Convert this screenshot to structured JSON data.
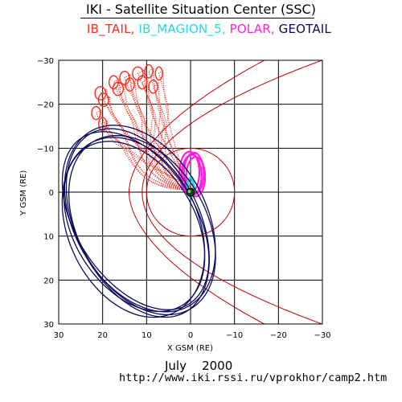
{
  "header": {
    "title": "IKI - Satellite Situation Center (SSC)"
  },
  "legend": [
    {
      "label": "IB_TAIL,",
      "color": "#ff2a1a"
    },
    {
      "label": "IB_MAGION_5,",
      "color": "#27d8e8"
    },
    {
      "label": "POLAR,",
      "color": "#ff1de0"
    },
    {
      "label": "GEOTAIL",
      "color": "#0a0a5a"
    }
  ],
  "footer": {
    "date_month": "July",
    "date_year": "2000",
    "url": "http://www.iki.rssi.ru/vprokhor/camp2.htm"
  },
  "chart_data": {
    "type": "scatter",
    "xlabel": "X GSM (RE)",
    "ylabel": "Y GSM (RE)",
    "xlim": [
      30,
      -30
    ],
    "ylim": [
      30,
      -30
    ],
    "xticks": [
      30,
      20,
      10,
      0,
      -10,
      -20,
      -30
    ],
    "yticks": [
      -30,
      -20,
      -10,
      0,
      10,
      20,
      30
    ],
    "xtick_labels": [
      "30",
      "20",
      "10",
      "0",
      "−10",
      "−20",
      "−30"
    ],
    "ytick_labels": [
      "−30",
      "−20",
      "−10",
      "0",
      "10",
      "20",
      "30"
    ],
    "grid": true,
    "earth": {
      "x": 0,
      "y": 0
    },
    "reference_curves": {
      "color": "#c00000",
      "magnetopause": {
        "standoff": 11,
        "flare_exponent": 0.5
      },
      "bow_shock": {
        "standoff": 14,
        "flare_exponent": 0.55,
        "x_min": -30
      },
      "circle_radius": 10
    },
    "series": [
      {
        "name": "IB_TAIL,",
        "color": "#ff2a1a",
        "orbits": [
          {
            "apogee": [
              20.5,
              -22.5
            ],
            "x_width": 2.5
          },
          {
            "apogee": [
              19.8,
              -21.0
            ],
            "x_width": 2.3
          },
          {
            "apogee": [
              17.5,
              -25.0
            ],
            "x_width": 2.1
          },
          {
            "apogee": [
              16.5,
              -23.5
            ],
            "x_width": 2.4
          },
          {
            "apogee": [
              15.0,
              -26.0
            ],
            "x_width": 2.2
          },
          {
            "apogee": [
              13.8,
              -24.5
            ],
            "x_width": 2.0
          },
          {
            "apogee": [
              12.0,
              -27.0
            ],
            "x_width": 2.4
          },
          {
            "apogee": [
              11.0,
              -25.0
            ],
            "x_width": 2.1
          },
          {
            "apogee": [
              9.5,
              -27.5
            ],
            "x_width": 1.8
          },
          {
            "apogee": [
              8.5,
              -24.0
            ],
            "x_width": 2.0
          },
          {
            "apogee": [
              7.2,
              -27.0
            ],
            "x_width": 1.6
          },
          {
            "apogee": [
              21.5,
              -18.0
            ],
            "x_width": 2.0
          },
          {
            "apogee": [
              20.0,
              -15.5
            ],
            "x_width": 1.8
          }
        ],
        "perigee": [
          1.5,
          -0.5
        ]
      },
      {
        "name": "POLAR,",
        "color": "#ff1de0",
        "loops": [
          {
            "x0": 1.5,
            "x1": -3.0,
            "y_min": -9.0,
            "y_max": 0.5
          },
          {
            "x0": 2.0,
            "x1": -2.5,
            "y_min": -8.5,
            "y_max": 0.8
          },
          {
            "x0": 2.5,
            "x1": -2.0,
            "y_min": -9.2,
            "y_max": 0.2
          },
          {
            "x0": 1.0,
            "x1": -3.3,
            "y_min": -8.0,
            "y_max": 1.0
          }
        ]
      },
      {
        "name": "IB_MAGION_5,",
        "color": "#27d8e8",
        "loops": [
          {
            "x0": 0.6,
            "x1": -0.8,
            "y_min": -3.5,
            "y_max": 1.2
          },
          {
            "x0": 0.8,
            "x1": -0.6,
            "y_min": -3.2,
            "y_max": 1.0
          }
        ]
      },
      {
        "name": "GEOTAIL",
        "color": "#0a0a5a",
        "orbits": [
          {
            "center": [
              11.0,
              7.5
            ],
            "rx": 14.5,
            "ry": 22.0,
            "tilt_deg": 30
          },
          {
            "center": [
              12.0,
              7.0
            ],
            "rx": 14.0,
            "ry": 23.0,
            "tilt_deg": 27
          },
          {
            "center": [
              12.5,
              6.5
            ],
            "rx": 13.5,
            "ry": 22.5,
            "tilt_deg": 33
          },
          {
            "center": [
              13.0,
              8.0
            ],
            "rx": 14.8,
            "ry": 21.5,
            "tilt_deg": 25
          },
          {
            "center": [
              11.5,
              6.0
            ],
            "rx": 15.0,
            "ry": 22.8,
            "tilt_deg": 29
          },
          {
            "center": [
              12.8,
              7.8
            ],
            "rx": 13.8,
            "ry": 21.0,
            "tilt_deg": 31
          }
        ]
      }
    ]
  }
}
